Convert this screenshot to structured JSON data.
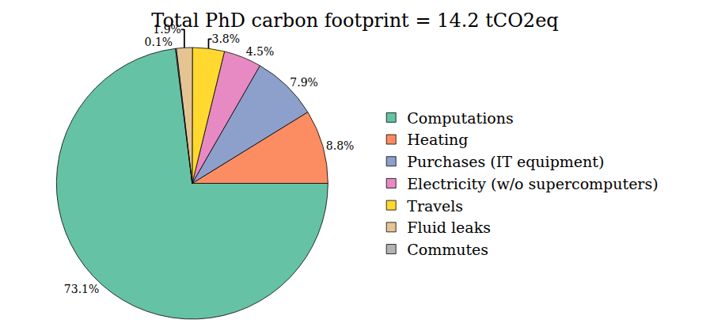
{
  "chart_data": {
    "type": "pie",
    "title": "Total PhD carbon footprint = 14.2 tCO2eq",
    "categories": [
      "Computations",
      "Heating",
      "Purchases (IT equipment)",
      "Electricity (w/o supercomputers)",
      "Travels",
      "Fluid leaks",
      "Commutes"
    ],
    "values": [
      73.1,
      8.8,
      7.9,
      4.5,
      3.8,
      1.9,
      0.1
    ],
    "value_labels": [
      "73.1%",
      "8.8%",
      "7.9%",
      "4.5%",
      "3.8%",
      "1.9%",
      "0.1%"
    ],
    "colors": [
      "#66c2a5",
      "#fc8d62",
      "#8da0cb",
      "#e78ac3",
      "#ffd92f",
      "#e5c494",
      "#b3b3b3"
    ],
    "legend": "right",
    "data_labels": true
  }
}
